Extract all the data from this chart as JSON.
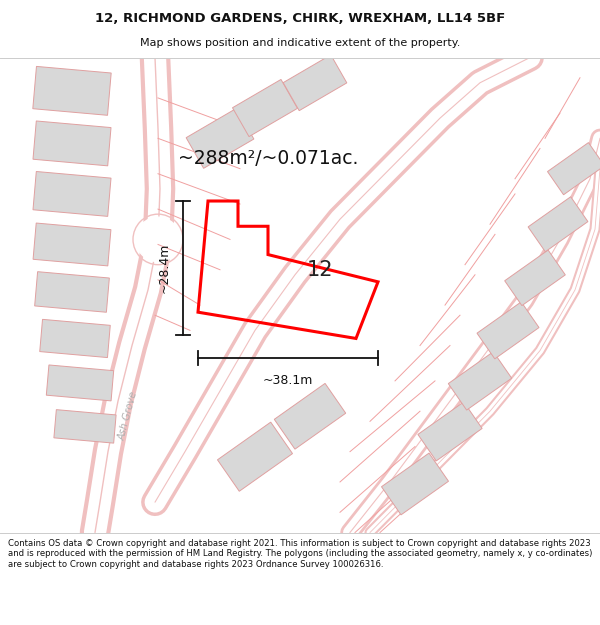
{
  "title_line1": "12, RICHMOND GARDENS, CHIRK, WREXHAM, LL14 5BF",
  "title_line2": "Map shows position and indicative extent of the property.",
  "footer_text": "Contains OS data © Crown copyright and database right 2021. This information is subject to Crown copyright and database rights 2023 and is reproduced with the permission of HM Land Registry. The polygons (including the associated geometry, namely x, y co-ordinates) are subject to Crown copyright and database rights 2023 Ordnance Survey 100026316.",
  "area_label": "~288m²/~0.071ac.",
  "width_label": "~38.1m",
  "height_label": "~28.4m",
  "property_number": "12",
  "bg_color": "#ffffff",
  "map_bg": "#ffffff",
  "highlight_color": "#ff0000",
  "building_fill": "#d8d8d8",
  "building_stroke": "#e8a0a0",
  "road_color": "#f0b0b0",
  "road_fill": "#fce8e8",
  "title_bg": "#ffffff",
  "footer_bg": "#ffffff",
  "prop_verts_x": [
    210,
    232,
    232,
    258,
    258,
    220,
    375,
    355,
    370,
    210
  ],
  "prop_verts_y": [
    258,
    258,
    278,
    278,
    295,
    340,
    325,
    370,
    385,
    385
  ]
}
